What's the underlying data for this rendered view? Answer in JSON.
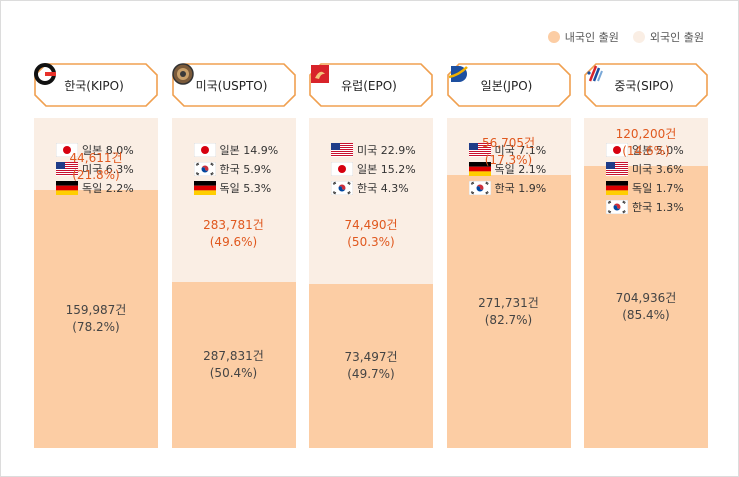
{
  "legend": [
    {
      "label": "내국인 출원",
      "color": "#fccda4"
    },
    {
      "label": "외국인 출원",
      "color": "#faeee4"
    }
  ],
  "colors": {
    "accent": "#f0a050",
    "foreign_text": "#e0581e",
    "domestic_text": "#444444"
  },
  "chart_data": {
    "type": "bar",
    "stacked": true,
    "categories": [
      "한국(KIPO)",
      "미국(USPTO)",
      "유럽(EPO)",
      "일본(JPO)",
      "중국(SIPO)"
    ],
    "series": [
      {
        "name": "내국인 출원",
        "color": "#fccda4",
        "values": [
          159987,
          287831,
          73497,
          271731,
          704936
        ],
        "labels": [
          "159,987건",
          "287,831건",
          "73,497건",
          "271,731건",
          "704,936건"
        ],
        "pct": [
          "(78.2%)",
          "(50.4%)",
          "(49.7%)",
          "(82.7%)",
          "(85.4%)"
        ],
        "share": [
          78.2,
          50.4,
          49.7,
          82.7,
          85.4
        ]
      },
      {
        "name": "외국인 출원",
        "color": "#faeee4",
        "values": [
          44611,
          283781,
          74490,
          56705,
          120200
        ],
        "labels": [
          "44,611건",
          "283,781건",
          "74,490건",
          "56,705건",
          "120,200건"
        ],
        "pct": [
          "(21.8%)",
          "(49.6%)",
          "(50.3%)",
          "(17.3%)",
          "(14.6%)"
        ],
        "share": [
          21.8,
          49.6,
          50.3,
          17.3,
          14.6
        ]
      }
    ],
    "offices": [
      {
        "label": "한국(KIPO)",
        "icon": "kipo-logo-icon",
        "foreign_shares": [
          {
            "flag": "japan",
            "text": "일본 8.0%"
          },
          {
            "flag": "usa",
            "text": "미국 6.3%"
          },
          {
            "flag": "germany",
            "text": "독일 2.2%"
          }
        ]
      },
      {
        "label": "미국(USPTO)",
        "icon": "uspto-seal-icon",
        "foreign_shares": [
          {
            "flag": "japan",
            "text": "일본 14.9%"
          },
          {
            "flag": "korea",
            "text": "한국 5.9%"
          },
          {
            "flag": "germany",
            "text": "독일 5.3%"
          }
        ]
      },
      {
        "label": "유럽(EPO)",
        "icon": "epo-logo-icon",
        "foreign_shares": [
          {
            "flag": "usa",
            "text": "미국 22.9%"
          },
          {
            "flag": "japan",
            "text": "일본 15.2%"
          },
          {
            "flag": "korea",
            "text": "한국 4.3%"
          }
        ]
      },
      {
        "label": "일본(JPO)",
        "icon": "jpo-logo-icon",
        "foreign_shares": [
          {
            "flag": "usa",
            "text": "미국 7.1%"
          },
          {
            "flag": "germany",
            "text": "독일 2.1%"
          },
          {
            "flag": "korea",
            "text": "한국 1.9%"
          }
        ]
      },
      {
        "label": "중국(SIPO)",
        "icon": "sipo-logo-icon",
        "foreign_shares": [
          {
            "flag": "japan",
            "text": "일본 5.0%"
          },
          {
            "flag": "usa",
            "text": "미국 3.6%"
          },
          {
            "flag": "germany",
            "text": "독일 1.7%"
          },
          {
            "flag": "korea",
            "text": "한국 1.3%"
          }
        ]
      }
    ]
  }
}
